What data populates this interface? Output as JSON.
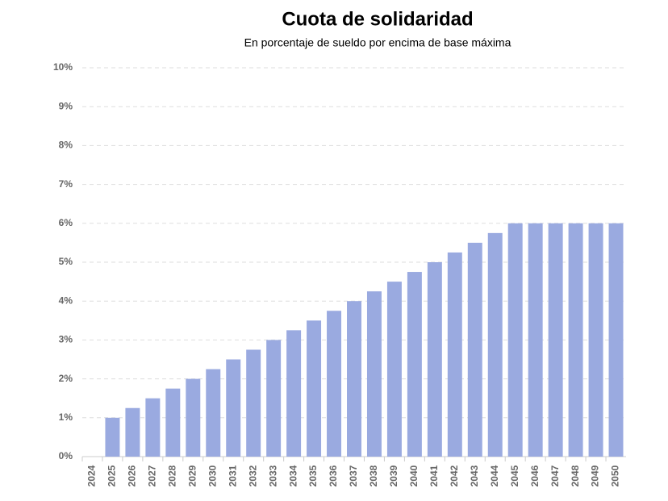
{
  "chart_data": {
    "type": "bar",
    "title": "Cuota de solidaridad",
    "subtitle": "En porcentaje de sueldo por encima de base máxima",
    "categories": [
      "2024",
      "2025",
      "2026",
      "2027",
      "2028",
      "2029",
      "2030",
      "2031",
      "2032",
      "2033",
      "2034",
      "2035",
      "2036",
      "2037",
      "2038",
      "2039",
      "2040",
      "2041",
      "2042",
      "2043",
      "2044",
      "2045",
      "2046",
      "2047",
      "2048",
      "2049",
      "2050"
    ],
    "values": [
      0,
      1,
      1.25,
      1.5,
      1.75,
      2,
      2.25,
      2.5,
      2.75,
      3,
      3.25,
      3.5,
      3.75,
      4,
      4.25,
      4.5,
      4.75,
      5,
      5.25,
      5.5,
      5.75,
      6,
      6,
      6,
      6,
      6,
      6
    ],
    "color": "#9aaae0",
    "ylim": [
      0,
      10
    ],
    "yticks": [
      {
        "value": 0,
        "label": "0%"
      },
      {
        "value": 1,
        "label": "1%"
      },
      {
        "value": 2,
        "label": "2%"
      },
      {
        "value": 3,
        "label": "3%"
      },
      {
        "value": 4,
        "label": "4%"
      },
      {
        "value": 5,
        "label": "5%"
      },
      {
        "value": 6,
        "label": "6%"
      },
      {
        "value": 7,
        "label": "7%"
      },
      {
        "value": 8,
        "label": "8%"
      },
      {
        "value": 9,
        "label": "9%"
      },
      {
        "value": 10,
        "label": "10%"
      }
    ],
    "grid": true
  }
}
